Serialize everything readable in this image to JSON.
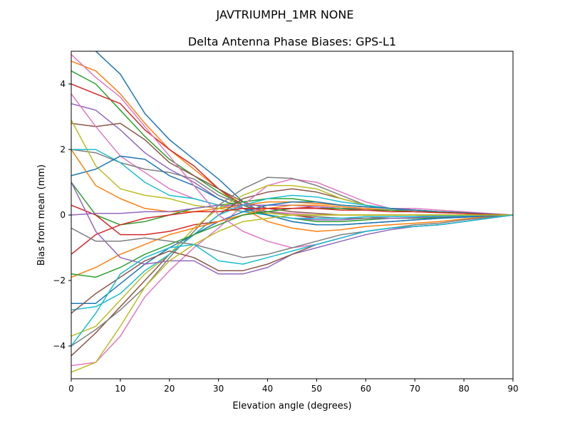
{
  "chart_data": {
    "type": "line",
    "suptitle": "JAVTRIUMPH_1MR  NONE",
    "title": "Delta Antenna Phase Biases: GPS-L1",
    "xlabel": "Elevation angle (degrees)",
    "ylabel": "Bias from mean (mm)",
    "xlim": [
      0,
      90
    ],
    "ylim": [
      -5,
      5
    ],
    "xticks": [
      0,
      10,
      20,
      30,
      40,
      50,
      60,
      70,
      80,
      90
    ],
    "yticks": [
      -4,
      -2,
      0,
      2,
      4
    ],
    "ytick_labels": [
      "−4",
      "−2",
      "0",
      "2",
      "4"
    ],
    "grid": false,
    "legend": "none",
    "colors": [
      "#1f77b4",
      "#ff7f0e",
      "#2ca02c",
      "#d62728",
      "#9467bd",
      "#8c564b",
      "#e377c2",
      "#7f7f7f",
      "#bcbd22",
      "#17becf"
    ],
    "x": [
      0,
      5,
      10,
      15,
      20,
      25,
      30,
      35,
      40,
      45,
      50,
      55,
      60,
      65,
      70,
      75,
      80,
      85,
      90
    ],
    "series": [
      {
        "values": [
          5.6,
          5.0,
          4.3,
          3.1,
          2.3,
          1.7,
          1.1,
          0.4,
          0.0,
          -0.2,
          -0.3,
          -0.3,
          -0.25,
          -0.2,
          -0.15,
          -0.1,
          -0.07,
          -0.03,
          0
        ]
      },
      {
        "values": [
          4.7,
          4.4,
          3.7,
          2.8,
          2.0,
          1.4,
          0.8,
          0.2,
          -0.2,
          -0.4,
          -0.5,
          -0.45,
          -0.35,
          -0.3,
          -0.25,
          -0.2,
          -0.12,
          -0.05,
          0
        ]
      },
      {
        "values": [
          4.4,
          4.0,
          3.2,
          2.4,
          1.7,
          1.2,
          0.7,
          0.3,
          0.0,
          -0.1,
          -0.2,
          -0.2,
          -0.15,
          -0.1,
          -0.1,
          -0.08,
          -0.05,
          -0.02,
          0
        ]
      },
      {
        "values": [
          4.0,
          3.7,
          3.4,
          2.6,
          2.0,
          1.5,
          0.8,
          0.3,
          0.1,
          0.0,
          -0.1,
          -0.1,
          -0.1,
          -0.05,
          -0.05,
          -0.03,
          -0.02,
          0,
          0
        ]
      },
      {
        "values": [
          3.4,
          3.2,
          2.6,
          1.9,
          1.4,
          1.0,
          0.5,
          0.2,
          0.0,
          -0.1,
          -0.15,
          -0.15,
          -0.1,
          -0.1,
          -0.08,
          -0.05,
          -0.03,
          -0.01,
          0
        ]
      },
      {
        "values": [
          2.8,
          2.7,
          2.8,
          2.3,
          1.6,
          1.2,
          0.8,
          0.4,
          0.2,
          0.1,
          0.05,
          0,
          0,
          0,
          0,
          0,
          0,
          0,
          0
        ]
      },
      {
        "values": [
          3.7,
          2.7,
          1.8,
          1.3,
          0.8,
          0.5,
          0.3,
          0.2,
          0.1,
          0.05,
          0,
          0,
          0,
          0,
          0,
          0,
          0,
          0,
          0
        ]
      },
      {
        "values": [
          2.0,
          1.9,
          1.6,
          1.4,
          1.3,
          1.1,
          0.6,
          0.3,
          0.1,
          0.0,
          -0.05,
          -0.1,
          -0.1,
          -0.05,
          -0.05,
          -0.03,
          -0.02,
          0,
          0
        ]
      },
      {
        "values": [
          2.9,
          1.5,
          0.8,
          0.6,
          0.5,
          0.3,
          0.2,
          0.1,
          0.05,
          0,
          0,
          0,
          0,
          0,
          0,
          0,
          0,
          0,
          0
        ]
      },
      {
        "values": [
          2.0,
          2.0,
          1.6,
          1.0,
          0.6,
          0.5,
          0.3,
          0.1,
          0.0,
          -0.1,
          -0.1,
          -0.1,
          -0.05,
          -0.05,
          -0.05,
          -0.03,
          -0.02,
          0,
          0
        ]
      },
      {
        "values": [
          1.2,
          1.4,
          1.8,
          1.7,
          1.2,
          0.9,
          0.5,
          0.2,
          0.0,
          -0.2,
          -0.3,
          -0.3,
          -0.25,
          -0.2,
          -0.15,
          -0.1,
          -0.06,
          -0.03,
          0
        ]
      },
      {
        "values": [
          2.0,
          0.9,
          0.5,
          0.2,
          0.1,
          0.1,
          0.2,
          0.3,
          0.4,
          0.4,
          0.35,
          0.3,
          0.25,
          0.2,
          0.15,
          0.1,
          0.07,
          0.03,
          0
        ]
      },
      {
        "values": [
          1.0,
          0.0,
          -0.3,
          -0.2,
          0.0,
          0.2,
          0.3,
          0.4,
          0.5,
          0.5,
          0.4,
          0.3,
          0.25,
          0.2,
          0.15,
          0.1,
          0.07,
          0.03,
          0
        ]
      },
      {
        "values": [
          0.3,
          0.0,
          -0.6,
          -0.6,
          -0.5,
          -0.3,
          -0.2,
          0.0,
          0.1,
          0.2,
          0.25,
          0.2,
          0.15,
          0.15,
          0.1,
          0.08,
          0.05,
          0.02,
          0
        ]
      },
      {
        "values": [
          0.0,
          0.05,
          0.05,
          0.1,
          0.1,
          0.2,
          0.3,
          0.3,
          0.3,
          0.3,
          0.25,
          0.2,
          0.2,
          0.15,
          0.15,
          0.1,
          0.07,
          0.03,
          0
        ]
      },
      {
        "values": [
          -4.3,
          -3.6,
          -2.8,
          -2.0,
          -1.2,
          -0.6,
          0.0,
          0.5,
          0.7,
          0.8,
          0.7,
          0.5,
          0.3,
          0.2,
          0.15,
          0.1,
          0.07,
          0.03,
          0
        ]
      },
      {
        "values": [
          -4.6,
          -4.5,
          -3.7,
          -2.5,
          -1.7,
          -1.0,
          -0.4,
          0.3,
          0.9,
          1.1,
          1.0,
          0.7,
          0.4,
          0.2,
          0.2,
          0.15,
          0.1,
          0.05,
          0
        ]
      },
      {
        "values": [
          -4.0,
          -3.5,
          -2.9,
          -2.2,
          -1.3,
          -0.5,
          0.3,
          0.8,
          1.15,
          1.12,
          0.9,
          0.6,
          0.3,
          0.2,
          0.15,
          0.1,
          0.07,
          0.03,
          0
        ]
      },
      {
        "values": [
          -3.7,
          -3.4,
          -2.6,
          -1.8,
          -1.2,
          -0.4,
          0.2,
          0.6,
          0.9,
          0.9,
          0.8,
          0.5,
          0.3,
          0.2,
          0.15,
          0.1,
          0.07,
          0.03,
          0
        ]
      },
      {
        "values": [
          -2.9,
          -2.8,
          -2.4,
          -1.7,
          -1.2,
          -0.6,
          0.0,
          0.3,
          0.5,
          0.6,
          0.55,
          0.4,
          0.3,
          0.2,
          0.15,
          0.1,
          0.07,
          0.03,
          0
        ]
      },
      {
        "values": [
          -2.7,
          -2.7,
          -2.1,
          -1.5,
          -1.0,
          -0.6,
          -0.2,
          0.1,
          0.3,
          0.4,
          0.4,
          0.3,
          0.25,
          0.2,
          0.15,
          0.1,
          0.07,
          0.03,
          0
        ]
      },
      {
        "values": [
          -1.9,
          -1.6,
          -1.2,
          -0.9,
          -0.6,
          -0.4,
          -0.2,
          0.0,
          0.2,
          0.3,
          0.3,
          0.25,
          0.2,
          0.15,
          0.1,
          0.08,
          0.05,
          0.02,
          0
        ]
      },
      {
        "values": [
          -1.8,
          -1.9,
          -1.6,
          -1.2,
          -0.9,
          -0.6,
          -0.3,
          0.0,
          0.1,
          0.2,
          0.2,
          0.2,
          0.15,
          0.15,
          0.1,
          0.08,
          0.05,
          0.02,
          0
        ]
      },
      {
        "values": [
          -1.2,
          -0.6,
          -0.3,
          -0.1,
          0.0,
          0.1,
          0.1,
          0.2,
          0.2,
          0.2,
          0.2,
          0.15,
          0.15,
          0.1,
          0.1,
          0.07,
          0.05,
          0.02,
          0
        ]
      },
      {
        "values": [
          1.0,
          -0.5,
          -1.3,
          -1.5,
          -1.4,
          -1.4,
          -1.8,
          -1.8,
          -1.6,
          -1.2,
          -1.0,
          -0.8,
          -0.6,
          -0.45,
          -0.35,
          -0.3,
          -0.2,
          -0.1,
          0
        ]
      },
      {
        "values": [
          -3.0,
          -2.4,
          -1.9,
          -1.4,
          -1.1,
          -1.3,
          -1.7,
          -1.7,
          -1.5,
          -1.2,
          -0.9,
          -0.7,
          -0.5,
          -0.4,
          -0.35,
          -0.3,
          -0.2,
          -0.1,
          0
        ]
      },
      {
        "values": [
          4.9,
          4.2,
          3.6,
          2.7,
          1.8,
          0.9,
          0.0,
          -0.5,
          -0.8,
          -1.0,
          -0.9,
          -0.7,
          -0.5,
          -0.4,
          -0.35,
          -0.3,
          -0.2,
          -0.1,
          0
        ]
      },
      {
        "values": [
          -0.4,
          -0.8,
          -0.8,
          -0.7,
          -0.8,
          -0.9,
          -1.1,
          -1.3,
          -1.2,
          -1.0,
          -0.8,
          -0.6,
          -0.5,
          -0.4,
          -0.3,
          -0.25,
          -0.15,
          -0.07,
          0
        ]
      },
      {
        "values": [
          -4.8,
          -4.5,
          -3.4,
          -2.2,
          -1.4,
          -0.9,
          -0.5,
          -0.2,
          -0.1,
          0,
          0,
          0,
          0,
          0,
          0,
          0,
          0,
          0,
          0
        ]
      },
      {
        "values": [
          -4.0,
          -3.0,
          -1.8,
          -1.3,
          -1.0,
          -0.9,
          -1.4,
          -1.5,
          -1.3,
          -1.1,
          -0.9,
          -0.7,
          -0.5,
          -0.4,
          -0.35,
          -0.3,
          -0.2,
          -0.1,
          0
        ]
      }
    ]
  }
}
